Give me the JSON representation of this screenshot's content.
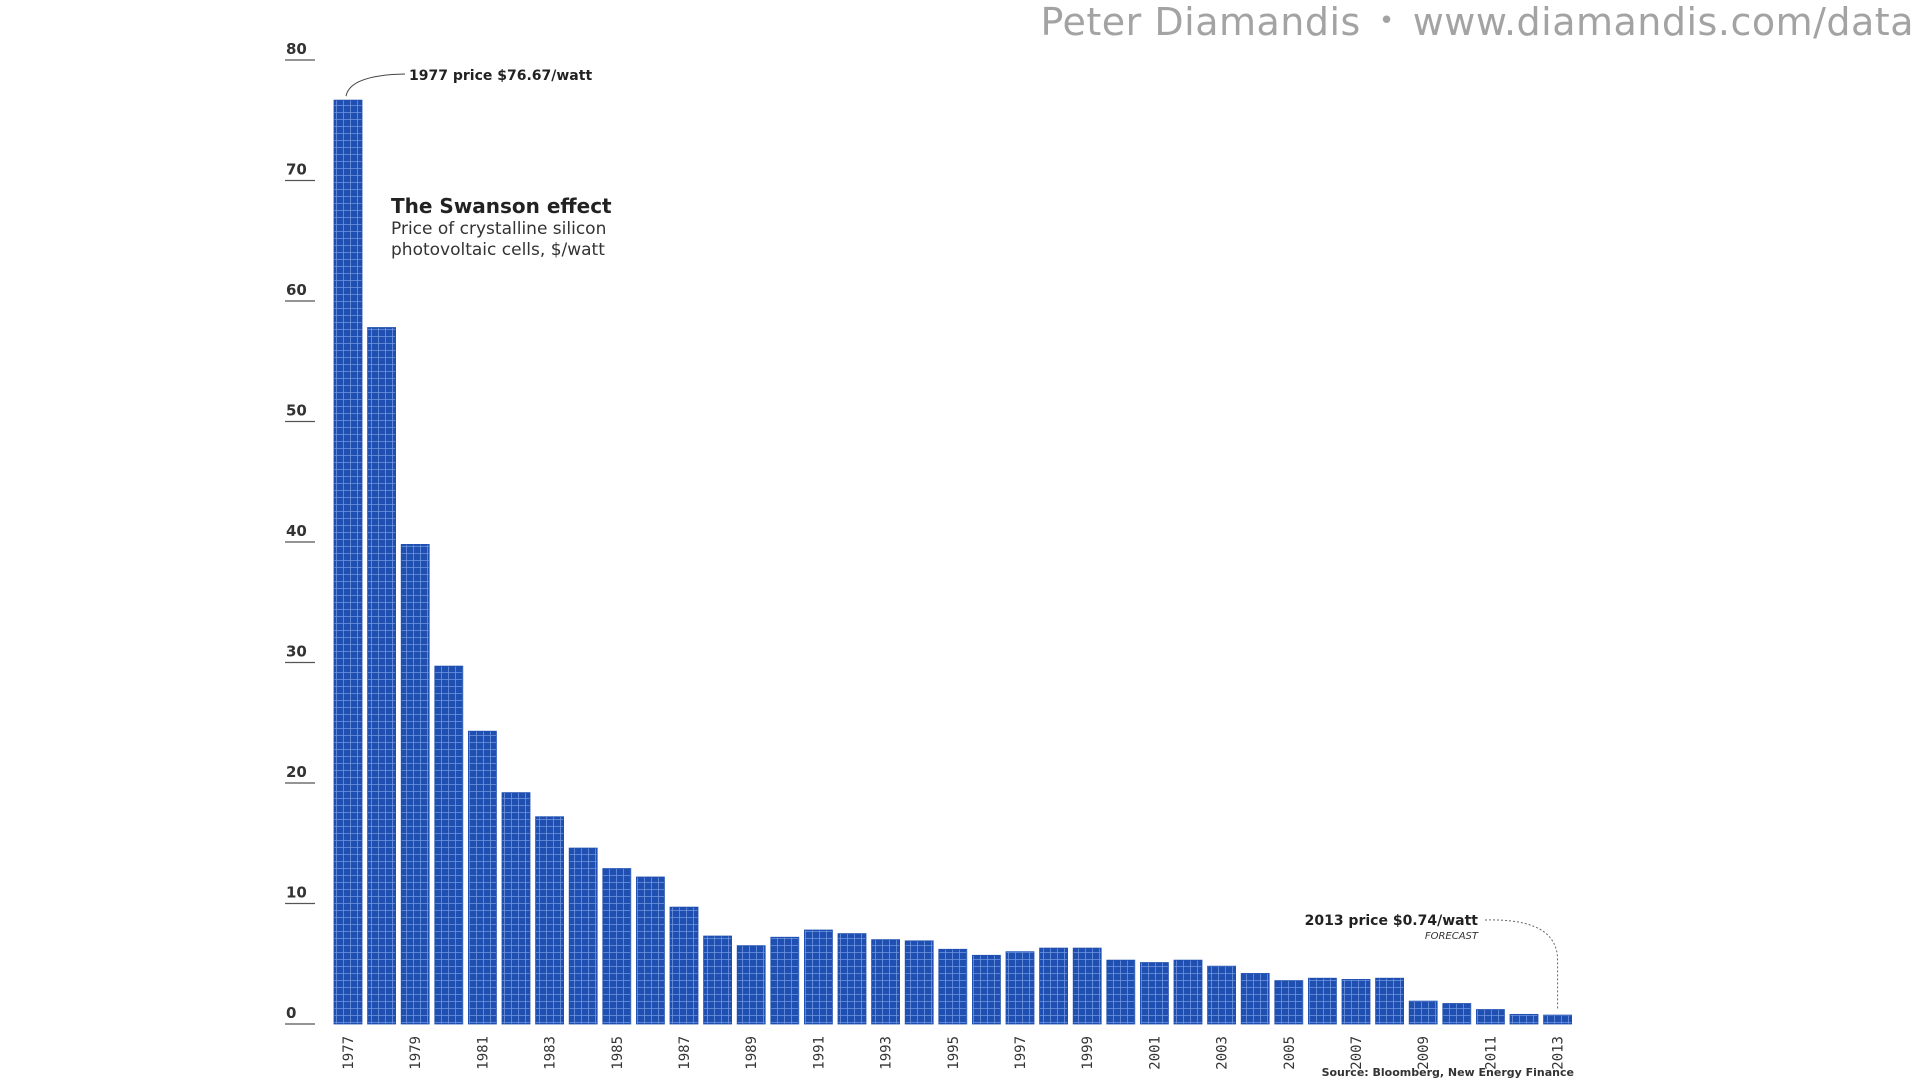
{
  "watermark": {
    "author": "Peter Diamandis",
    "separator": "•",
    "site": "www.diamandis.com/data"
  },
  "annotations": {
    "first_price": "1977 price $76.67/watt",
    "last_price": "2013 price $0.74/watt",
    "last_note": "FORECAST",
    "source": "Source: Bloomberg, New Energy Finance"
  },
  "colors": {
    "bar": "#1f4fb0",
    "bar_grid": "#7fa3e6",
    "axis": "#555555",
    "text": "#222222"
  },
  "chart_data": {
    "type": "bar",
    "title": "The Swanson effect",
    "subtitle": "Price of crystalline silicon photovoltaic cells, $/watt",
    "xlabel": "",
    "ylabel": "",
    "ylim": [
      0,
      80
    ],
    "yticks": [
      0,
      10,
      20,
      30,
      40,
      50,
      60,
      70,
      80
    ],
    "categories": [
      "1977",
      "1978",
      "1979",
      "1980",
      "1981",
      "1982",
      "1983",
      "1984",
      "1985",
      "1986",
      "1987",
      "1988",
      "1989",
      "1990",
      "1991",
      "1992",
      "1993",
      "1994",
      "1995",
      "1996",
      "1997",
      "1998",
      "1999",
      "2000",
      "2001",
      "2002",
      "2003",
      "2004",
      "2005",
      "2006",
      "2007",
      "2008",
      "2009",
      "2010",
      "2011",
      "2012",
      "2013"
    ],
    "xtick_labels": [
      "1977",
      "",
      "1979",
      "",
      "1981",
      "",
      "1983",
      "",
      "1985",
      "",
      "1987",
      "",
      "1989",
      "",
      "1991",
      "",
      "1993",
      "",
      "1995",
      "",
      "1997",
      "",
      "1999",
      "",
      "2001",
      "",
      "2003",
      "",
      "2005",
      "",
      "2007",
      "",
      "2009",
      "",
      "2011",
      "",
      "2013"
    ],
    "values": [
      76.67,
      57.8,
      39.8,
      29.7,
      24.3,
      19.2,
      17.2,
      14.6,
      12.9,
      12.2,
      9.7,
      7.3,
      6.5,
      7.2,
      7.8,
      7.5,
      7.0,
      6.9,
      6.2,
      5.7,
      6.0,
      6.3,
      6.3,
      5.3,
      5.1,
      5.3,
      4.8,
      4.2,
      3.6,
      3.8,
      3.7,
      3.8,
      1.9,
      1.7,
      1.2,
      0.8,
      0.74
    ],
    "grid": false,
    "legend": "none"
  }
}
